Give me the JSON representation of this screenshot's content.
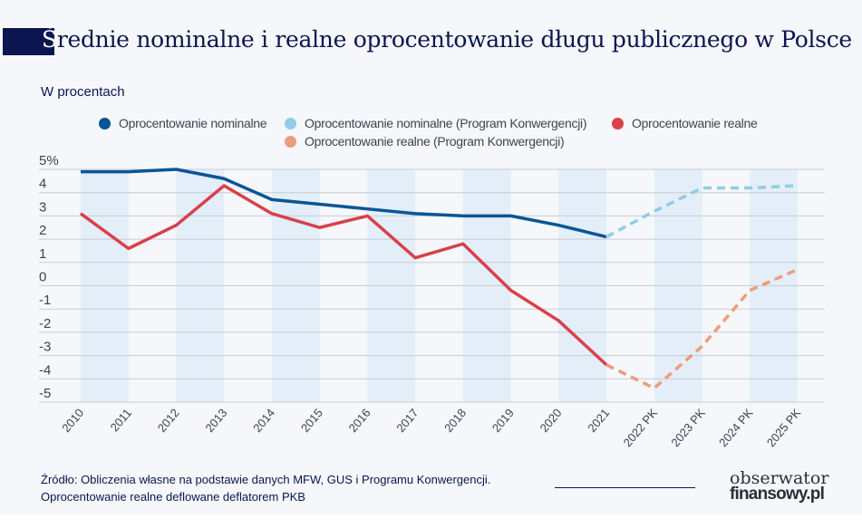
{
  "title": {
    "first_letter": "Ś",
    "rest": "rednie nominalne i realne oprocentowanie długu publicznego w Polsce"
  },
  "subtitle": "W procentach",
  "legend": [
    {
      "label": "Oprocentowanie nominalne",
      "color": "#0a5595"
    },
    {
      "label": "Oprocentowanie nominalne (Program Konwergencji)",
      "color": "#93cbe6"
    },
    {
      "label": "Oprocentowanie realne",
      "color": "#d9404a"
    },
    {
      "label": "Oprocentowanie realne (Program Konwergencji)",
      "color": "#ef9c7c"
    }
  ],
  "footer": {
    "source": "Źródło: Obliczenia własne na podstawie danych MFW, GUS i Programu Konwergencji.",
    "note": "Oprocentowanie realne deflowane deflatorem PKB",
    "logo_top": "obserwator",
    "logo_bottom": "finansowy.pl"
  },
  "chart_data": {
    "type": "line",
    "title": "Średnie nominalne i realne oprocentowanie długu publicznego w Polsce",
    "ylabel": "W procentach",
    "ylim": [
      -5,
      5
    ],
    "y_ticks": [
      "5%",
      "4",
      "3",
      "2",
      "1",
      "0",
      "-1",
      "-2",
      "-3",
      "-4",
      "-5"
    ],
    "grid": true,
    "legend_position": "top",
    "categories": [
      "2010",
      "2011",
      "2012",
      "2013",
      "2014",
      "2015",
      "2016",
      "2017",
      "2018",
      "2019",
      "2020",
      "2021",
      "2022 PK",
      "2023 PK",
      "2024 PK",
      "2025 PK"
    ],
    "series": [
      {
        "name": "Oprocentowanie nominalne",
        "style": "solid",
        "color": "#0a5595",
        "values": [
          4.9,
          4.9,
          5.0,
          4.6,
          3.7,
          3.5,
          3.3,
          3.1,
          3.0,
          3.0,
          2.6,
          2.1,
          null,
          null,
          null,
          null
        ]
      },
      {
        "name": "Oprocentowanie nominalne (Program Konwergencji)",
        "style": "dashed",
        "color": "#93cbe6",
        "values": [
          null,
          null,
          null,
          null,
          null,
          null,
          null,
          null,
          null,
          null,
          null,
          2.1,
          3.2,
          4.2,
          4.2,
          4.3
        ]
      },
      {
        "name": "Oprocentowanie realne",
        "style": "solid",
        "color": "#d9404a",
        "values": [
          3.1,
          1.6,
          2.6,
          4.3,
          3.1,
          2.5,
          3.0,
          1.2,
          1.8,
          -0.2,
          -1.5,
          -3.4,
          null,
          null,
          null,
          null
        ]
      },
      {
        "name": "Oprocentowanie realne (Program Konwergencji)",
        "style": "dashed",
        "color": "#ef9c7c",
        "values": [
          null,
          null,
          null,
          null,
          null,
          null,
          null,
          null,
          null,
          null,
          null,
          -3.4,
          -4.4,
          -2.6,
          -0.2,
          0.7
        ]
      }
    ]
  }
}
